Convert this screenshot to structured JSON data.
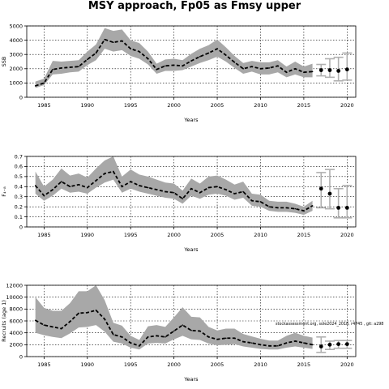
{
  "figure": {
    "title": "MSY approach, Fp05 as Fmsy upper"
  },
  "chart_data": [
    {
      "type": "line",
      "ylabel": "SSB",
      "xlabel": "Years",
      "ylim": [
        0,
        5000
      ],
      "yticks": [
        0,
        1000,
        2000,
        3000,
        4000,
        5000
      ],
      "xlim": [
        1983,
        2021
      ],
      "xticks": [
        1985,
        1990,
        1995,
        2000,
        2005,
        2010,
        2015,
        2020
      ],
      "grid": true,
      "annotation": "",
      "series": [
        {
          "x": [
            1984,
            1985,
            1986,
            1987,
            1988,
            1989,
            1990,
            1991,
            1992,
            1993,
            1994,
            1995,
            1996,
            1997,
            1998,
            1999,
            2000,
            2001,
            2002,
            2003,
            2004,
            2005,
            2006,
            2007,
            2008,
            2009,
            2010,
            2011,
            2012,
            2013,
            2014,
            2015,
            2016
          ],
          "values": [
            800,
            1000,
            1950,
            2050,
            2100,
            2150,
            2650,
            3100,
            4050,
            3850,
            3950,
            3400,
            3200,
            2700,
            1950,
            2200,
            2250,
            2200,
            2550,
            2850,
            3100,
            3400,
            2950,
            2450,
            2000,
            2150,
            2000,
            2050,
            2200,
            1750,
            2000,
            1750,
            1800
          ],
          "lower": [
            650,
            850,
            1600,
            1650,
            1750,
            1800,
            2250,
            2600,
            3400,
            3200,
            3300,
            2900,
            2700,
            2300,
            1650,
            1850,
            1850,
            1900,
            2150,
            2400,
            2600,
            2850,
            2500,
            2050,
            1650,
            1800,
            1600,
            1600,
            1750,
            1400,
            1600,
            1400,
            1400
          ],
          "upper": [
            1100,
            1300,
            2550,
            2500,
            2550,
            2600,
            3200,
            3700,
            4850,
            4650,
            4750,
            4000,
            3800,
            3200,
            2350,
            2650,
            2700,
            2600,
            3050,
            3400,
            3650,
            4050,
            3500,
            2900,
            2400,
            2550,
            2450,
            2450,
            2600,
            2150,
            2500,
            2150,
            2350
          ]
        }
      ],
      "projection": [
        {
          "x": 2017,
          "value": 1900,
          "lower": 1500,
          "upper": 2300
        },
        {
          "x": 2018,
          "value": 1900,
          "lower": 1400,
          "upper": 2700
        },
        {
          "x": 2019,
          "value": 1850,
          "lower": 1150,
          "upper": 2800
        },
        {
          "x": 2020,
          "value": 1950,
          "lower": 1200,
          "upper": 3100
        }
      ]
    },
    {
      "type": "line",
      "ylabel": "F₄₋₈",
      "xlabel": "Years",
      "ylim": [
        0,
        0.7
      ],
      "yticks": [
        0,
        0.1,
        0.2,
        0.3,
        0.4,
        0.5,
        0.6,
        0.7
      ],
      "xlim": [
        1983,
        2021
      ],
      "xticks": [
        1985,
        1990,
        1995,
        2000,
        2005,
        2010,
        2015,
        2020
      ],
      "grid": true,
      "annotation": "",
      "series": [
        {
          "x": [
            1984,
            1985,
            1986,
            1987,
            1988,
            1989,
            1990,
            1991,
            1992,
            1993,
            1994,
            1995,
            1996,
            1997,
            1998,
            1999,
            2000,
            2001,
            2002,
            2003,
            2004,
            2005,
            2006,
            2007,
            2008,
            2009,
            2010,
            2011,
            2012,
            2013,
            2014,
            2015,
            2016
          ],
          "values": [
            0.41,
            0.31,
            0.37,
            0.45,
            0.4,
            0.42,
            0.39,
            0.46,
            0.53,
            0.55,
            0.4,
            0.45,
            0.41,
            0.39,
            0.37,
            0.35,
            0.34,
            0.28,
            0.38,
            0.34,
            0.39,
            0.4,
            0.37,
            0.33,
            0.35,
            0.26,
            0.25,
            0.2,
            0.19,
            0.19,
            0.18,
            0.16,
            0.21
          ],
          "lower": [
            0.33,
            0.26,
            0.31,
            0.38,
            0.34,
            0.35,
            0.33,
            0.39,
            0.44,
            0.47,
            0.34,
            0.38,
            0.35,
            0.33,
            0.31,
            0.29,
            0.28,
            0.23,
            0.31,
            0.28,
            0.32,
            0.33,
            0.31,
            0.27,
            0.29,
            0.21,
            0.2,
            0.16,
            0.15,
            0.15,
            0.14,
            0.12,
            0.16
          ],
          "upper": [
            0.55,
            0.4,
            0.47,
            0.58,
            0.51,
            0.53,
            0.49,
            0.58,
            0.66,
            0.7,
            0.5,
            0.57,
            0.52,
            0.5,
            0.47,
            0.44,
            0.43,
            0.36,
            0.48,
            0.43,
            0.5,
            0.51,
            0.47,
            0.42,
            0.45,
            0.33,
            0.32,
            0.26,
            0.25,
            0.25,
            0.23,
            0.2,
            0.26
          ]
        }
      ],
      "projection": [
        {
          "x": 2017,
          "value": 0.38,
          "lower": 0.19,
          "upper": 0.54
        },
        {
          "x": 2018,
          "value": 0.33,
          "lower": 0.18,
          "upper": 0.57
        },
        {
          "x": 2019,
          "value": 0.19,
          "lower": 0.09,
          "upper": 0.38
        },
        {
          "x": 2020,
          "value": 0.19,
          "lower": 0.09,
          "upper": 0.41
        }
      ]
    },
    {
      "type": "line",
      "ylabel": "Recruits (age 1)",
      "xlabel": "Years",
      "ylim": [
        0,
        12000
      ],
      "yticks": [
        0,
        2000,
        4000,
        6000,
        8000,
        10000,
        12000
      ],
      "xlim": [
        1983,
        2021
      ],
      "xticks": [
        1985,
        1990,
        1995,
        2000,
        2005,
        2010,
        2015,
        2020
      ],
      "grid": true,
      "annotation": "stockassessment.org, sole2024_2018, r4745 , git: a298",
      "series": [
        {
          "x": [
            1984,
            1985,
            1986,
            1987,
            1988,
            1989,
            1990,
            1991,
            1992,
            1993,
            1994,
            1995,
            1996,
            1997,
            1998,
            1999,
            2000,
            2001,
            2002,
            2003,
            2004,
            2005,
            2006,
            2007,
            2008,
            2009,
            2010,
            2011,
            2012,
            2013,
            2014,
            2015,
            2016
          ],
          "values": [
            6100,
            5300,
            5000,
            4700,
            5900,
            7300,
            7400,
            7800,
            6300,
            3700,
            3300,
            2300,
            1800,
            3300,
            3500,
            3300,
            4300,
            5300,
            4400,
            4300,
            3300,
            2900,
            3100,
            3100,
            2500,
            2300,
            2000,
            1800,
            1800,
            2300,
            2600,
            2300,
            2000
          ],
          "lower": [
            4000,
            3600,
            3300,
            3100,
            3900,
            4900,
            5000,
            5300,
            4200,
            2500,
            2200,
            1500,
            1200,
            2200,
            2300,
            2200,
            2900,
            3500,
            2900,
            2800,
            2200,
            1900,
            2000,
            2100,
            1700,
            1500,
            1300,
            1200,
            1200,
            1500,
            1700,
            1500,
            1300
          ],
          "upper": [
            10000,
            8200,
            7700,
            7700,
            9000,
            11000,
            11000,
            12000,
            9500,
            5700,
            5200,
            3500,
            2800,
            5100,
            5300,
            5000,
            6600,
            8300,
            6700,
            6600,
            5000,
            4400,
            4700,
            4700,
            3800,
            3400,
            3000,
            2700,
            2700,
            3500,
            4000,
            3500,
            3200
          ]
        }
      ],
      "projection": [
        {
          "x": 2017,
          "value": 1700,
          "lower": 700,
          "upper": 3300
        },
        {
          "x": 2018,
          "value": 2000,
          "lower": 1200,
          "upper": 2600
        },
        {
          "x": 2019,
          "value": 2100,
          "lower": 1400,
          "upper": 2700
        },
        {
          "x": 2020,
          "value": 2100,
          "lower": 1400,
          "upper": 2700
        }
      ]
    }
  ]
}
